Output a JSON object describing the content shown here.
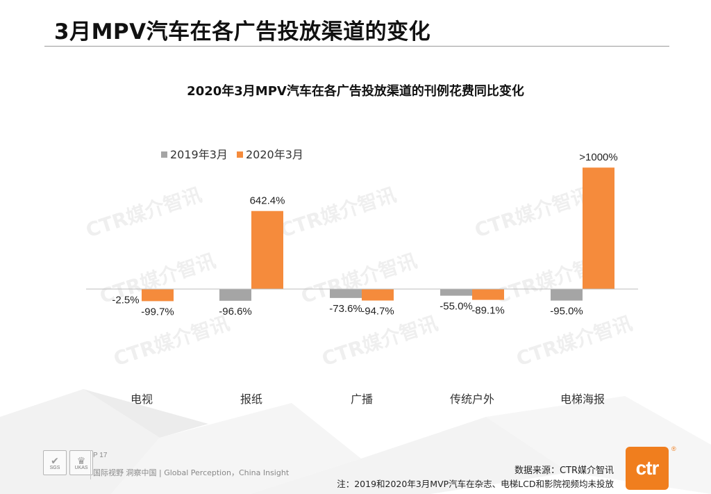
{
  "page": {
    "title": "3月MPV汽车在各广告投放渠道的变化"
  },
  "watermark_text": "CTR媒介智讯",
  "chart_data": {
    "type": "bar",
    "title": "2020年3月MPV汽车在各广告投放渠道的刊例花费同比变化",
    "xlabel": "",
    "ylabel": "",
    "categories": [
      "电视",
      "报纸",
      "广播",
      "传统户外",
      "电梯海报"
    ],
    "series": [
      {
        "name": "2019年3月",
        "color": "#a5a5a5",
        "values": [
          -2.5,
          -96.6,
          -73.6,
          -55.0,
          -95.0
        ],
        "labels": [
          "-2.5%",
          "-96.6%",
          "-73.6%",
          "-55.0%",
          "-95.0%"
        ]
      },
      {
        "name": "2020年3月",
        "color": "#f58b3c",
        "values": [
          -99.7,
          642.4,
          -94.7,
          -89.1,
          1000
        ],
        "labels": [
          "-99.7%",
          "642.4%",
          "-94.7%",
          "-89.1%",
          ">1000%"
        ]
      }
    ],
    "ylim": [
      -130,
      1000
    ],
    "grid": false,
    "legend_position": "top-left"
  },
  "footer": {
    "page_number": "P 17",
    "slogan": "国际视野  洞察中国 |  Global Perception，China Insight",
    "source": "数据来源：CTR媒介智讯",
    "note": "注：2019和2020年3月MVP汽车在杂志、电梯LCD和影院视频均未投放",
    "brand": "ctr",
    "cert_badges": [
      "SGS",
      "UKAS"
    ]
  },
  "colors": {
    "accent": "#f07e1e",
    "gray_bar": "#a5a5a5",
    "orange_bar": "#f58b3c"
  }
}
